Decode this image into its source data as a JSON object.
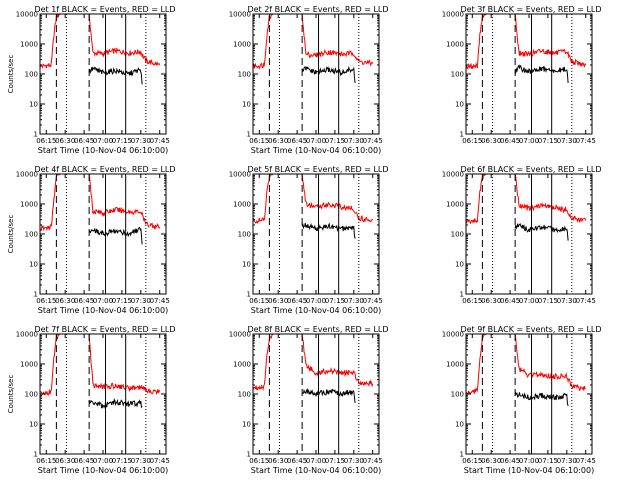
{
  "chart_data": [
    {
      "type": "line",
      "title": "Det 1f BLACK = Events, RED = LLD",
      "xlabel": "Start Time (10-Nov-04 06:10:00)",
      "ylabel": "Counts/sec",
      "yscale": "log",
      "ylim": [
        1,
        10000
      ],
      "xlim": [
        "06:10",
        "07:50"
      ],
      "xticks": [
        "06:15",
        "06:30",
        "06:45",
        "07:00",
        "07:15",
        "07:30",
        "07:45"
      ],
      "yticks": [
        "1",
        "10",
        "100",
        "1000",
        "10000"
      ],
      "vlines": {
        "dashed": [
          "06:23",
          "06:49"
        ],
        "dotted": [
          "06:31",
          "07:34"
        ],
        "solid": [
          "07:02",
          "07:18"
        ]
      },
      "series": [
        {
          "color": "#ff0000",
          "x": [
            "06:10",
            "06:15",
            "06:19",
            "06:21",
            "06:23",
            "06:26",
            "06:49",
            "06:52",
            "07:00",
            "07:10",
            "07:20",
            "07:30",
            "07:34",
            "07:45"
          ],
          "values": [
            180,
            190,
            200,
            2000,
            8000,
            10000,
            10000,
            500,
            480,
            600,
            500,
            550,
            270,
            200
          ]
        },
        {
          "color": "#000000",
          "x": [
            "06:49",
            "06:52",
            "07:00",
            "07:10",
            "07:20",
            "07:30",
            "07:31"
          ],
          "values": [
            120,
            150,
            110,
            130,
            100,
            140,
            45
          ]
        }
      ]
    },
    {
      "type": "line",
      "title": "Det 2f BLACK = Events, RED = LLD",
      "xlabel": "Start Time (10-Nov-04 06:10:00)",
      "ylabel": "",
      "yscale": "log",
      "ylim": [
        1,
        10000
      ],
      "xlim": [
        "06:10",
        "07:50"
      ],
      "xticks": [
        "06:15",
        "06:30",
        "06:45",
        "07:00",
        "07:15",
        "07:30",
        "07:45"
      ],
      "yticks": [
        "1",
        "10",
        "100",
        "1000",
        "10000"
      ],
      "vlines": {
        "dashed": [
          "06:23",
          "06:49"
        ],
        "dotted": [
          "06:31",
          "07:34"
        ],
        "solid": [
          "07:02",
          "07:18"
        ]
      },
      "series": [
        {
          "color": "#ff0000",
          "x": [
            "06:10",
            "06:15",
            "06:19",
            "06:21",
            "06:23",
            "06:26",
            "06:49",
            "06:52",
            "07:00",
            "07:10",
            "07:20",
            "07:30",
            "07:34",
            "07:45"
          ],
          "values": [
            180,
            190,
            200,
            2000,
            8000,
            10000,
            10000,
            450,
            420,
            550,
            450,
            500,
            260,
            220
          ]
        },
        {
          "color": "#000000",
          "x": [
            "06:49",
            "06:52",
            "07:00",
            "07:10",
            "07:20",
            "07:30",
            "07:31"
          ],
          "values": [
            130,
            150,
            110,
            140,
            110,
            150,
            50
          ]
        }
      ]
    },
    {
      "type": "line",
      "title": "Det 3f BLACK = Events, RED = LLD",
      "xlabel": "",
      "ylabel": "",
      "yscale": "log",
      "ylim": [
        1,
        10000
      ],
      "xlim": [
        "06:10",
        "07:50"
      ],
      "xticks": [
        "06:15",
        "06:30",
        "06:45",
        "07:00",
        "07:15",
        "07:30",
        "07:45"
      ],
      "yticks": [
        "1",
        "10",
        "100",
        "1000",
        "10000"
      ],
      "vlines": {
        "dashed": [
          "06:23",
          "06:49"
        ],
        "dotted": [
          "06:31",
          "07:34"
        ],
        "solid": [
          "07:02",
          "07:18"
        ]
      },
      "series": [
        {
          "color": "#ff0000",
          "x": [
            "06:10",
            "06:15",
            "06:19",
            "06:21",
            "06:23",
            "06:26",
            "06:49",
            "06:52",
            "07:00",
            "07:10",
            "07:20",
            "07:30",
            "07:34",
            "07:45"
          ],
          "values": [
            170,
            180,
            190,
            2000,
            8000,
            10000,
            10000,
            500,
            450,
            600,
            500,
            550,
            260,
            200
          ]
        },
        {
          "color": "#000000",
          "x": [
            "06:49",
            "06:52",
            "07:00",
            "07:10",
            "07:20",
            "07:30",
            "07:31"
          ],
          "values": [
            130,
            160,
            120,
            150,
            120,
            150,
            50
          ]
        }
      ]
    },
    {
      "type": "line",
      "title": "Det 4f BLACK = Events, RED = LLD",
      "xlabel": "Start Time (10-Nov-04 06:10:00)",
      "ylabel": "Counts/sec",
      "yscale": "log",
      "ylim": [
        1,
        10000
      ],
      "xlim": [
        "06:10",
        "07:50"
      ],
      "xticks": [
        "06:15",
        "06:30",
        "06:45",
        "07:00",
        "07:15",
        "07:30",
        "07:45"
      ],
      "yticks": [
        "1",
        "10",
        "100",
        "1000",
        "10000"
      ],
      "vlines": {
        "dashed": [
          "06:23",
          "06:49"
        ],
        "dotted": [
          "06:31",
          "07:34"
        ],
        "solid": [
          "07:02",
          "07:18"
        ]
      },
      "series": [
        {
          "color": "#ff0000",
          "x": [
            "06:10",
            "06:15",
            "06:19",
            "06:21",
            "06:23",
            "06:26",
            "06:49",
            "06:52",
            "07:00",
            "07:10",
            "07:20",
            "07:30",
            "07:34",
            "07:45"
          ],
          "values": [
            150,
            160,
            170,
            1500,
            8000,
            10000,
            10000,
            600,
            500,
            650,
            550,
            550,
            220,
            170
          ]
        },
        {
          "color": "#000000",
          "x": [
            "06:49",
            "06:52",
            "07:00",
            "07:10",
            "07:20",
            "07:30",
            "07:31"
          ],
          "values": [
            120,
            140,
            100,
            130,
            100,
            140,
            45
          ]
        }
      ]
    },
    {
      "type": "line",
      "title": "Det 5f BLACK = Events, RED = LLD",
      "xlabel": "Start Time (10-Nov-04 06:10:00)",
      "ylabel": "",
      "yscale": "log",
      "ylim": [
        1,
        10000
      ],
      "xlim": [
        "06:10",
        "07:50"
      ],
      "xticks": [
        "06:15",
        "06:30",
        "06:45",
        "07:00",
        "07:15",
        "07:30",
        "07:45"
      ],
      "yticks": [
        "1",
        "10",
        "100",
        "1000",
        "10000"
      ],
      "vlines": {
        "dashed": [
          "06:23",
          "06:49"
        ],
        "dotted": [
          "06:31",
          "07:34"
        ],
        "solid": [
          "07:02",
          "07:18"
        ]
      },
      "series": [
        {
          "color": "#ff0000",
          "x": [
            "06:10",
            "06:15",
            "06:19",
            "06:21",
            "06:23",
            "06:26",
            "06:49",
            "06:52",
            "07:00",
            "07:10",
            "07:20",
            "07:30",
            "07:34",
            "07:45"
          ],
          "values": [
            270,
            280,
            290,
            2500,
            8000,
            10000,
            10000,
            1000,
            800,
            1000,
            800,
            700,
            330,
            300
          ]
        },
        {
          "color": "#000000",
          "x": [
            "06:49",
            "06:52",
            "07:00",
            "07:10",
            "07:20",
            "07:30",
            "07:31"
          ],
          "values": [
            180,
            200,
            150,
            180,
            150,
            170,
            70
          ]
        }
      ]
    },
    {
      "type": "line",
      "title": "Det 6f BLACK = Events, RED = LLD",
      "xlabel": "",
      "ylabel": "",
      "yscale": "log",
      "ylim": [
        1,
        10000
      ],
      "xlim": [
        "06:10",
        "07:50"
      ],
      "xticks": [
        "06:15",
        "06:30",
        "06:45",
        "07:00",
        "07:15",
        "07:30",
        "07:45"
      ],
      "yticks": [
        "1",
        "10",
        "100",
        "1000",
        "10000"
      ],
      "vlines": {
        "dashed": [
          "06:23",
          "06:49"
        ],
        "dotted": [
          "06:31",
          "07:34"
        ],
        "solid": [
          "07:02",
          "07:18"
        ]
      },
      "series": [
        {
          "color": "#ff0000",
          "x": [
            "06:10",
            "06:15",
            "06:19",
            "06:21",
            "06:23",
            "06:26",
            "06:49",
            "06:52",
            "07:00",
            "07:10",
            "07:20",
            "07:30",
            "07:34",
            "07:45"
          ],
          "values": [
            260,
            270,
            280,
            2500,
            8000,
            10000,
            10000,
            900,
            700,
            900,
            750,
            650,
            330,
            280
          ]
        },
        {
          "color": "#000000",
          "x": [
            "06:49",
            "06:52",
            "07:00",
            "07:10",
            "07:20",
            "07:30",
            "07:31"
          ],
          "values": [
            170,
            190,
            140,
            170,
            140,
            160,
            60
          ]
        }
      ]
    },
    {
      "type": "line",
      "title": "Det 7f BLACK = Events, RED = LLD",
      "xlabel": "Start Time (10-Nov-04 06:10:00)",
      "ylabel": "Counts/sec",
      "yscale": "log",
      "ylim": [
        1,
        10000
      ],
      "xlim": [
        "06:10",
        "07:50"
      ],
      "xticks": [
        "06:15",
        "06:30",
        "06:45",
        "07:00",
        "07:15",
        "07:30",
        "07:45"
      ],
      "yticks": [
        "1",
        "10",
        "100",
        "1000",
        "10000"
      ],
      "vlines": {
        "dashed": [
          "06:23",
          "06:49"
        ],
        "dotted": [
          "06:31",
          "07:34"
        ],
        "solid": [
          "07:02",
          "07:18"
        ]
      },
      "series": [
        {
          "color": "#ff0000",
          "x": [
            "06:10",
            "06:15",
            "06:19",
            "06:21",
            "06:23",
            "06:26",
            "06:49",
            "06:52",
            "07:00",
            "07:10",
            "07:20",
            "07:30",
            "07:34",
            "07:45"
          ],
          "values": [
            100,
            110,
            120,
            1500,
            8000,
            10000,
            10000,
            200,
            170,
            190,
            160,
            170,
            130,
            120
          ]
        },
        {
          "color": "#000000",
          "x": [
            "06:49",
            "06:52",
            "07:00",
            "07:10",
            "07:20",
            "07:30",
            "07:31"
          ],
          "values": [
            60,
            50,
            40,
            55,
            45,
            50,
            40
          ]
        }
      ]
    },
    {
      "type": "line",
      "title": "Det 8f BLACK = Events, RED = LLD",
      "xlabel": "Start Time (10-Nov-04 06:10:00)",
      "ylabel": "",
      "yscale": "log",
      "ylim": [
        1,
        10000
      ],
      "xlim": [
        "06:10",
        "07:50"
      ],
      "xticks": [
        "06:15",
        "06:30",
        "06:45",
        "07:00",
        "07:15",
        "07:30",
        "07:45"
      ],
      "yticks": [
        "1",
        "10",
        "100",
        "1000",
        "10000"
      ],
      "vlines": {
        "dashed": [
          "06:23",
          "06:49"
        ],
        "dotted": [
          "06:31",
          "07:34"
        ],
        "solid": [
          "07:02",
          "07:18"
        ]
      },
      "series": [
        {
          "color": "#ff0000",
          "x": [
            "06:10",
            "06:15",
            "06:19",
            "06:21",
            "06:23",
            "06:26",
            "06:49",
            "06:52",
            "07:00",
            "07:10",
            "07:20",
            "07:30",
            "07:34",
            "07:45"
          ],
          "values": [
            160,
            170,
            180,
            1800,
            8000,
            10000,
            10000,
            900,
            500,
            600,
            500,
            520,
            250,
            220
          ]
        },
        {
          "color": "#000000",
          "x": [
            "06:49",
            "06:52",
            "07:00",
            "07:10",
            "07:20",
            "07:30",
            "07:31"
          ],
          "values": [
            120,
            130,
            100,
            120,
            100,
            120,
            50
          ]
        }
      ]
    },
    {
      "type": "line",
      "title": "Det 9f BLACK = Events, RED = LLD",
      "xlabel": "Start Time (10-Nov-04 06:10:00)",
      "ylabel": "",
      "yscale": "log",
      "ylim": [
        1,
        10000
      ],
      "xlim": [
        "06:10",
        "07:50"
      ],
      "xticks": [
        "06:15",
        "06:30",
        "06:45",
        "07:00",
        "07:15",
        "07:30",
        "07:45"
      ],
      "yticks": [
        "1",
        "10",
        "100",
        "1000",
        "10000"
      ],
      "vlines": {
        "dashed": [
          "06:23",
          "06:49"
        ],
        "dotted": [
          "06:31",
          "07:34"
        ],
        "solid": [
          "07:02",
          "07:18"
        ]
      },
      "series": [
        {
          "color": "#ff0000",
          "x": [
            "06:10",
            "06:15",
            "06:19",
            "06:21",
            "06:23",
            "06:26",
            "06:49",
            "06:52",
            "07:00",
            "07:10",
            "07:20",
            "07:30",
            "07:34",
            "07:45"
          ],
          "values": [
            110,
            120,
            130,
            1500,
            8000,
            10000,
            10000,
            700,
            400,
            450,
            380,
            400,
            180,
            150
          ]
        },
        {
          "color": "#000000",
          "x": [
            "06:49",
            "06:52",
            "07:00",
            "07:10",
            "07:20",
            "07:30",
            "07:31"
          ],
          "values": [
            90,
            100,
            75,
            90,
            75,
            90,
            40
          ]
        }
      ]
    }
  ]
}
